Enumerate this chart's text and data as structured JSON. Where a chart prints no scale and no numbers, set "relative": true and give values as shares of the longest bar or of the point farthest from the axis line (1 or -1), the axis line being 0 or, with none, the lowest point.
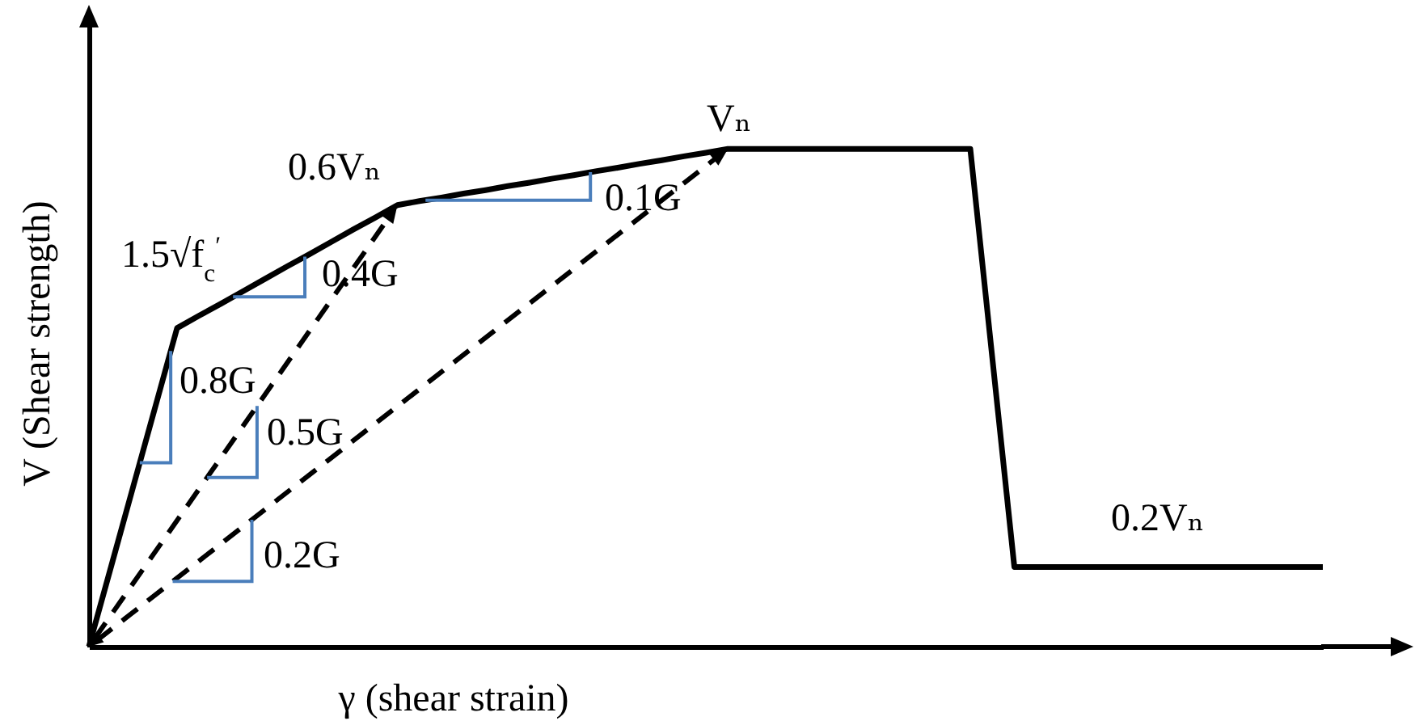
{
  "chart_data": {
    "type": "line",
    "relative": true,
    "xlabel": "γ (shear strain)",
    "ylabel": "V (Shear strength)",
    "line_style": "solid",
    "categories": [
      null,
      null,
      null,
      null,
      null,
      null,
      null,
      null,
      null,
      null,
      null,
      null,
      null,
      null,
      null,
      null,
      null,
      null,
      null,
      null,
      null,
      null,
      null,
      null,
      null,
      null,
      null,
      null,
      null,
      null,
      null,
      null,
      null,
      null,
      null,
      null,
      null,
      null,
      null,
      null,
      null,
      null,
      null,
      null,
      null,
      null,
      null,
      null,
      null,
      null,
      null,
      null,
      null,
      null,
      null,
      null,
      null
    ],
    "series": [
      {
        "color": "#000000",
        "values": [
          0,
          0.16,
          0.32,
          0.48,
          0.64,
          0.665,
          0.689,
          0.714,
          0.739,
          0.764,
          0.788,
          0.813,
          0.838,
          0.862,
          0.887,
          0.895,
          0.902,
          0.91,
          0.917,
          0.925,
          0.932,
          0.94,
          0.947,
          0.955,
          0.962,
          0.97,
          0.977,
          0.985,
          0.992,
          1,
          1,
          1,
          1,
          1,
          1,
          1,
          1,
          1,
          1,
          1,
          1,
          0.58,
          0.16,
          0.16,
          0.16,
          0.16,
          0.16,
          0.16,
          0.16,
          0.16,
          0.16,
          0.16,
          0.16,
          0.16,
          0.16,
          0.16,
          0.16
        ]
      }
    ],
    "annotations": [
      "1.5√f$_{c}$$^{′}$",
      "0.8G",
      "0.4G",
      "0.5G",
      "0.2G",
      "0.1G",
      "0.6Vₙ",
      "Vₙ",
      "0.2Vₙ"
    ]
  }
}
